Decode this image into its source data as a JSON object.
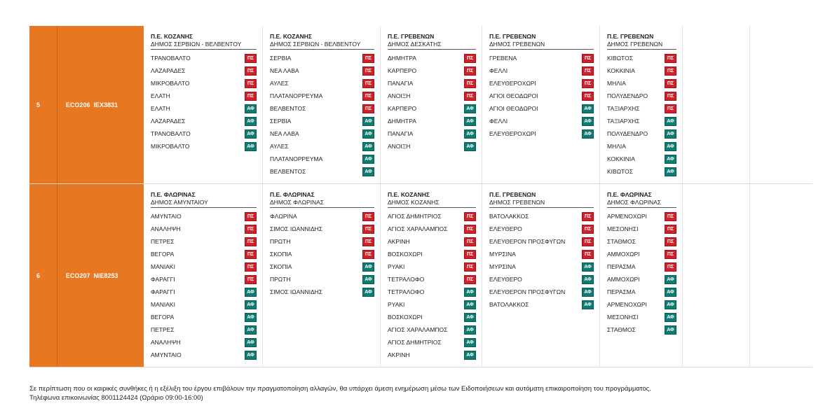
{
  "rows": [
    {
      "num": "5",
      "code": "ECO206",
      "plate": "ΙΕΧ3831",
      "columns": [
        {
          "pe": "Π.Ε. ΚΟΖΑΝΗΣ",
          "dimos": "ΔΗΜΟΣ ΣΕΡΒΙΩΝ - ΒΕΛΒΕΝΤΟΥ",
          "stops": [
            {
              "name": "ΤΡΑΝΟΒΑΛΤΟ",
              "tag": "ΠΣ"
            },
            {
              "name": "ΛΑΖΑΡΑΔΕΣ",
              "tag": "ΠΣ"
            },
            {
              "name": "ΜΙΚΡΟΒΑΛΤΟ",
              "tag": "ΠΣ"
            },
            {
              "name": "ΕΛΑΤΗ",
              "tag": "ΠΣ"
            },
            {
              "name": "ΕΛΑΤΗ",
              "tag": "ΑΦ"
            },
            {
              "name": "ΛΑΖΑΡΑΔΕΣ",
              "tag": "ΑΦ"
            },
            {
              "name": "ΤΡΑΝΟΒΑΛΤΟ",
              "tag": "ΑΦ"
            },
            {
              "name": "ΜΙΚΡΟΒΑΛΤΟ",
              "tag": "ΑΦ"
            }
          ]
        },
        {
          "pe": "Π.Ε. ΚΟΖΑΝΗΣ",
          "dimos": "ΔΗΜΟΣ ΣΕΡΒΙΩΝ - ΒΕΛΒΕΝΤΟΥ",
          "stops": [
            {
              "name": "ΣΕΡΒΙΑ",
              "tag": "ΠΣ"
            },
            {
              "name": "ΝΕΑ ΛΑΒΑ",
              "tag": "ΠΣ"
            },
            {
              "name": "ΑΥΛΕΣ",
              "tag": "ΠΣ"
            },
            {
              "name": "ΠΛΑΤΑΝΟΡΡΕΥΜΑ",
              "tag": "ΠΣ"
            },
            {
              "name": "ΒΕΛΒΕΝΤΟΣ",
              "tag": "ΠΣ"
            },
            {
              "name": "ΣΕΡΒΙΑ",
              "tag": "ΑΦ"
            },
            {
              "name": "ΝΕΑ ΛΑΒΑ",
              "tag": "ΑΦ"
            },
            {
              "name": "ΑΥΛΕΣ",
              "tag": "ΑΦ"
            },
            {
              "name": "ΠΛΑΤΑΝΟΡΡΕΥΜΑ",
              "tag": "ΑΦ"
            },
            {
              "name": "ΒΕΛΒΕΝΤΟΣ",
              "tag": "ΑΦ"
            }
          ]
        },
        {
          "pe": "Π.Ε. ΓΡΕΒΕΝΩΝ",
          "dimos": "ΔΗΜΟΣ ΔΕΣΚΑΤΗΣ",
          "stops": [
            {
              "name": "ΔΗΜΗΤΡΑ",
              "tag": "ΠΣ"
            },
            {
              "name": "ΚΑΡΠΕΡΟ",
              "tag": "ΠΣ"
            },
            {
              "name": "ΠΑΝΑΓΙΑ",
              "tag": "ΠΣ"
            },
            {
              "name": "ΑΝΟΙΞΗ",
              "tag": "ΠΣ"
            },
            {
              "name": "ΚΑΡΠΕΡΟ",
              "tag": "ΑΦ"
            },
            {
              "name": "ΔΗΜΗΤΡΑ",
              "tag": "ΑΦ"
            },
            {
              "name": "ΠΑΝΑΓΙΑ",
              "tag": "ΑΦ"
            },
            {
              "name": "ΑΝΟΙΞΗ",
              "tag": "ΑΦ"
            }
          ]
        },
        {
          "pe": "Π.Ε. ΓΡΕΒΕΝΩΝ",
          "dimos": "ΔΗΜΟΣ ΓΡΕΒΕΝΩΝ",
          "stops": [
            {
              "name": "ΓΡΕΒΕΝΑ",
              "tag": "ΠΣ"
            },
            {
              "name": "ΦΕΛΛΙ",
              "tag": "ΠΣ"
            },
            {
              "name": "ΕΛΕΥΘΕΡΟΧΩΡΙ",
              "tag": "ΠΣ"
            },
            {
              "name": "ΑΓΙΟΙ ΘΕΟΔΩΡΟΙ",
              "tag": "ΠΣ"
            },
            {
              "name": "ΑΓΙΟΙ ΘΕΟΔΩΡΟΙ",
              "tag": "ΑΦ"
            },
            {
              "name": "ΦΕΛΛΙ",
              "tag": "ΑΦ"
            },
            {
              "name": "ΕΛΕΥΘΕΡΟΧΩΡΙ",
              "tag": "ΑΦ"
            }
          ]
        },
        {
          "pe": "Π.Ε. ΓΡΕΒΕΝΩΝ",
          "dimos": "ΔΗΜΟΣ ΓΡΕΒΕΝΩΝ",
          "stops": [
            {
              "name": "ΚΙΒΩΤΟΣ",
              "tag": "ΠΣ"
            },
            {
              "name": "ΚΟΚΚΙΝΙΑ",
              "tag": "ΠΣ"
            },
            {
              "name": "ΜΗΛΙΑ",
              "tag": "ΠΣ"
            },
            {
              "name": "ΠΟΛΥΔΕΝΔΡΟ",
              "tag": "ΠΣ"
            },
            {
              "name": "ΤΑΞΙΑΡΧΗΣ",
              "tag": "ΠΣ"
            },
            {
              "name": "ΤΑΞΙΑΡΧΗΣ",
              "tag": "ΑΦ"
            },
            {
              "name": "ΠΟΛΥΔΕΝΔΡΟ",
              "tag": "ΑΦ"
            },
            {
              "name": "ΜΗΛΙΑ",
              "tag": "ΑΦ"
            },
            {
              "name": "ΚΟΚΚΙΝΙΑ",
              "tag": "ΑΦ"
            },
            {
              "name": "ΚΙΒΩΤΟΣ",
              "tag": "ΑΦ"
            }
          ]
        },
        {
          "pe": "",
          "dimos": "",
          "stops": []
        },
        {
          "pe": "",
          "dimos": "",
          "stops": []
        }
      ]
    },
    {
      "num": "6",
      "code": "ECO207",
      "plate": "ΝΙΕ8253",
      "columns": [
        {
          "pe": "Π.Ε. ΦΛΩΡΙΝΑΣ",
          "dimos": "ΔΗΜΟΣ ΑΜΥΝΤΑΙΟΥ",
          "stops": [
            {
              "name": "ΑΜΥΝΤΑΙΟ",
              "tag": "ΠΣ"
            },
            {
              "name": "ΑΝΑΛΗΨΗ",
              "tag": "ΠΣ"
            },
            {
              "name": "ΠΕΤΡΕΣ",
              "tag": "ΠΣ"
            },
            {
              "name": "ΒΕΓΟΡΑ",
              "tag": "ΠΣ"
            },
            {
              "name": "ΜΑΝΙΑΚΙ",
              "tag": "ΠΣ"
            },
            {
              "name": "ΦΑΡΑΓΓΙ",
              "tag": "ΠΣ"
            },
            {
              "name": "ΦΑΡΑΓΓΙ",
              "tag": "ΑΦ"
            },
            {
              "name": "ΜΑΝΙΑΚΙ",
              "tag": "ΑΦ"
            },
            {
              "name": "ΒΕΓΟΡΑ",
              "tag": "ΑΦ"
            },
            {
              "name": "ΠΕΤΡΕΣ",
              "tag": "ΑΦ"
            },
            {
              "name": "ΑΝΑΛΗΨΗ",
              "tag": "ΑΦ"
            },
            {
              "name": "ΑΜΥΝΤΑΙΟ",
              "tag": "ΑΦ"
            }
          ]
        },
        {
          "pe": "Π.Ε. ΦΛΩΡΙΝΑΣ",
          "dimos": "ΔΗΜΟΣ ΦΛΩΡΙΝΑΣ",
          "stops": [
            {
              "name": "ΦΛΩΡΙΝΑ",
              "tag": "ΠΣ"
            },
            {
              "name": "ΣΙΜΟΣ ΙΩΑΝΝΙΔΗΣ",
              "tag": "ΠΣ"
            },
            {
              "name": "ΠΡΩΤΗ",
              "tag": "ΠΣ"
            },
            {
              "name": "ΣΚΟΠΙΑ",
              "tag": "ΠΣ"
            },
            {
              "name": "ΣΚΟΠΙΑ",
              "tag": "ΑΦ"
            },
            {
              "name": "ΠΡΩΤΗ",
              "tag": "ΑΦ"
            },
            {
              "name": "ΣΙΜΟΣ ΙΩΑΝΝΙΔΗΣ",
              "tag": "ΑΦ"
            }
          ]
        },
        {
          "pe": "Π.Ε. ΚΟΖΑΝΗΣ",
          "dimos": "ΔΗΜΟΣ ΚΟΖΑΝΗΣ",
          "stops": [
            {
              "name": "ΑΓΙΟΣ ΔΗΜΗΤΡΙΟΣ",
              "tag": "ΠΣ"
            },
            {
              "name": "ΑΓΙΟΣ ΧΑΡΑΛΑΜΠΟΣ",
              "tag": "ΠΣ"
            },
            {
              "name": "ΑΚΡΙΝΗ",
              "tag": "ΠΣ"
            },
            {
              "name": "ΒΟΣΚΟΧΩΡΙ",
              "tag": "ΠΣ"
            },
            {
              "name": "ΡΥΑΚΙ",
              "tag": "ΠΣ"
            },
            {
              "name": "ΤΕΤΡΑΛΟΦΟ",
              "tag": "ΠΣ"
            },
            {
              "name": "ΤΕΤΡΑΛΟΦΟ",
              "tag": "ΑΦ"
            },
            {
              "name": "ΡΥΑΚΙ",
              "tag": "ΑΦ"
            },
            {
              "name": "ΒΟΣΚΟΧΩΡΙ",
              "tag": "ΑΦ"
            },
            {
              "name": "ΑΓΙΟΣ ΧΑΡΑΛΑΜΠΟΣ",
              "tag": "ΑΦ"
            },
            {
              "name": "ΑΓΙΟΣ ΔΗΜΗΤΡΙΟΣ",
              "tag": "ΑΦ"
            },
            {
              "name": "ΑΚΡΙΝΗ",
              "tag": "ΑΦ"
            }
          ]
        },
        {
          "pe": "Π.Ε. ΓΡΕΒΕΝΩΝ",
          "dimos": "ΔΗΜΟΣ ΓΡΕΒΕΝΩΝ",
          "stops": [
            {
              "name": "ΒΑΤΟΛΑΚΚΟΣ",
              "tag": "ΠΣ"
            },
            {
              "name": "ΕΛΕΥΘΕΡΟ",
              "tag": "ΠΣ"
            },
            {
              "name": "ΕΛΕΥΘΕΡΟΝ ΠΡΟΣΦΥΓΩΝ",
              "tag": "ΠΣ"
            },
            {
              "name": "ΜΥΡΣΙΝΑ",
              "tag": "ΠΣ"
            },
            {
              "name": "ΜΥΡΣΙΝΑ",
              "tag": "ΑΦ"
            },
            {
              "name": "ΕΛΕΥΘΕΡΟ",
              "tag": "ΑΦ"
            },
            {
              "name": "ΕΛΕΥΘΕΡΟΝ ΠΡΟΣΦΥΓΩΝ",
              "tag": "ΑΦ"
            },
            {
              "name": "ΒΑΤΟΛΑΚΚΟΣ",
              "tag": "ΑΦ"
            }
          ]
        },
        {
          "pe": "Π.Ε. ΦΛΩΡΙΝΑΣ",
          "dimos": "ΔΗΜΟΣ ΦΛΩΡΙΝΑΣ",
          "stops": [
            {
              "name": "ΑΡΜΕΝΟΧΩΡΙ",
              "tag": "ΠΣ"
            },
            {
              "name": "ΜΕΣΟΝΗΣΙ",
              "tag": "ΠΣ"
            },
            {
              "name": "ΣΤΑΘΜΟΣ",
              "tag": "ΠΣ"
            },
            {
              "name": "ΑΜΜΟΧΩΡΙ",
              "tag": "ΠΣ"
            },
            {
              "name": "ΠΕΡΑΣΜΑ",
              "tag": "ΠΣ"
            },
            {
              "name": "ΑΜΜΟΧΩΡΙ",
              "tag": "ΑΦ"
            },
            {
              "name": "ΠΕΡΑΣΜΑ",
              "tag": "ΑΦ"
            },
            {
              "name": "ΑΡΜΕΝΟΧΩΡΙ",
              "tag": "ΑΦ"
            },
            {
              "name": "ΜΕΣΟΝΗΣΙ",
              "tag": "ΑΦ"
            },
            {
              "name": "ΣΤΑΘΜΟΣ",
              "tag": "ΑΦ"
            }
          ]
        },
        {
          "pe": "",
          "dimos": "",
          "stops": []
        },
        {
          "pe": "",
          "dimos": "",
          "stops": []
        }
      ]
    }
  ],
  "footer": {
    "line1": "Σε περίπτωση που οι καιρικές συνθήκες ή η εξέλιξη του έργου επιβάλουν την πραγματοποίηση αλλαγών, θα υπάρχει άμεση ενημέρωση μέσω των Ειδοποιήσεων και αυτόματη επικαιροποίηση του προγράμματος.",
    "line2": "Τηλέφωνα επικοινωνίας 8001124424 (Ωράριο 09:00-16:00)"
  },
  "colors": {
    "accent": "#e87722",
    "tag_ps": "#d0212b",
    "tag_af": "#0f7c73"
  }
}
